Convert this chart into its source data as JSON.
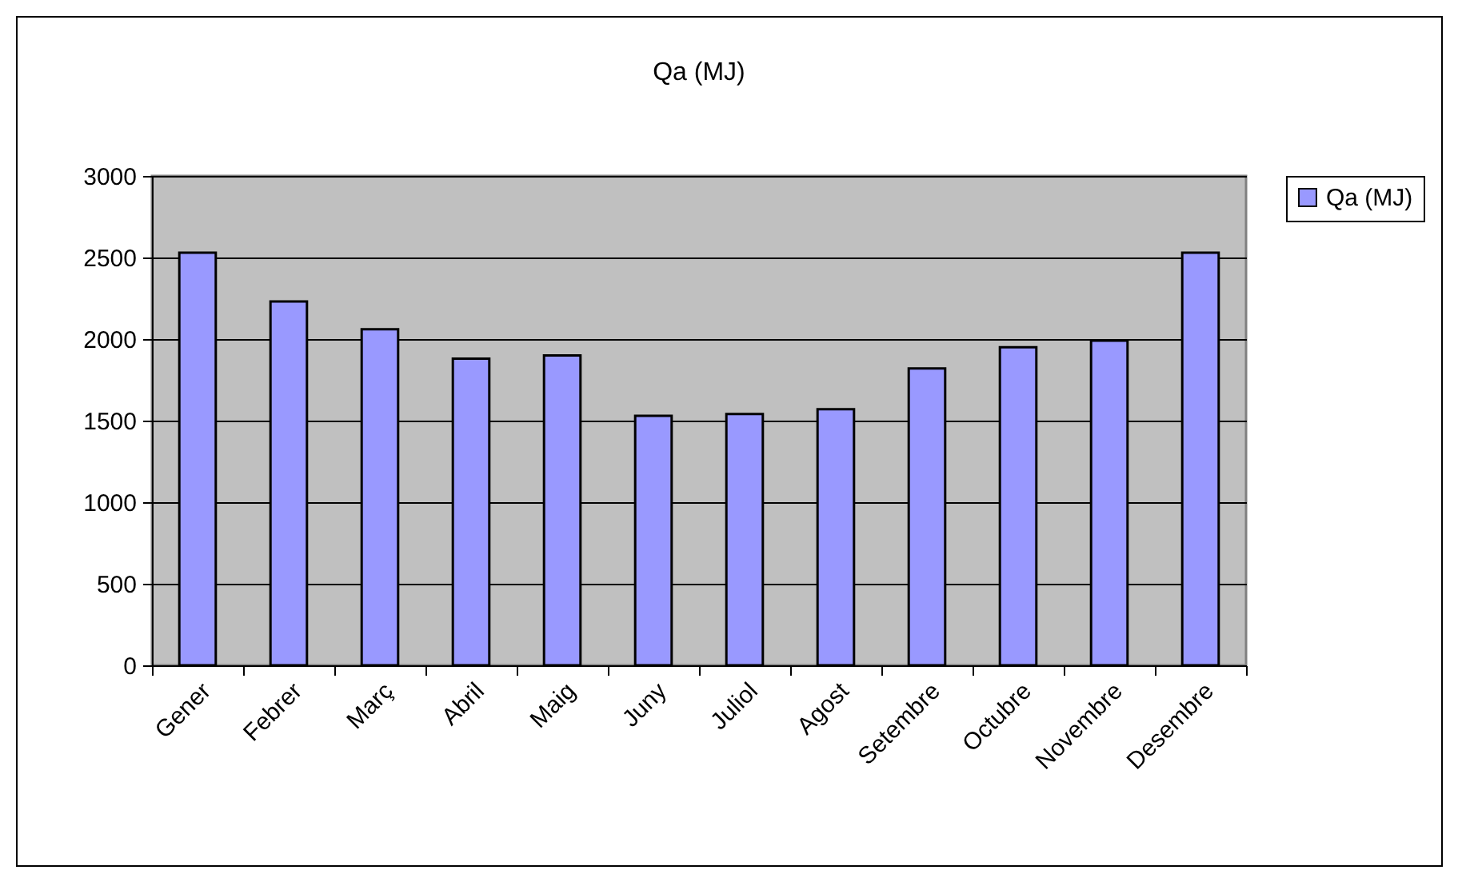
{
  "chart_data": {
    "type": "bar",
    "title": "Qa (MJ)",
    "categories": [
      "Gener",
      "Febrer",
      "Març",
      "Abril",
      "Maig",
      "Juny",
      "Juliol",
      "Agost",
      "Setembre",
      "Octubre",
      "Novembre",
      "Desembre"
    ],
    "series": [
      {
        "name": "Qa (MJ)",
        "color": "#9999ff",
        "values": [
          2530,
          2230,
          2060,
          1880,
          1900,
          1530,
          1540,
          1570,
          1820,
          1950,
          1990,
          2530
        ]
      }
    ],
    "ylim": [
      0,
      3000
    ],
    "yticks": [
      0,
      500,
      1000,
      1500,
      2000,
      2500,
      3000
    ],
    "grid": "y",
    "legend": "right"
  }
}
